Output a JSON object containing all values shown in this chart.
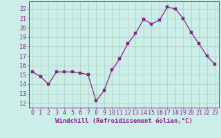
{
  "x": [
    0,
    1,
    2,
    3,
    4,
    5,
    6,
    7,
    8,
    9,
    10,
    11,
    12,
    13,
    14,
    15,
    16,
    17,
    18,
    19,
    20,
    21,
    22,
    23
  ],
  "y": [
    15.3,
    14.8,
    14.0,
    15.3,
    15.3,
    15.3,
    15.2,
    15.0,
    12.2,
    13.3,
    15.5,
    16.7,
    18.3,
    19.4,
    20.9,
    20.4,
    20.8,
    22.2,
    22.0,
    21.0,
    19.5,
    18.3,
    17.0,
    16.1
  ],
  "line_color": "#882288",
  "marker": "s",
  "markersize": 2.2,
  "linewidth": 0.9,
  "bg_color": "#cceee8",
  "grid_color": "#aaccbb",
  "xlabel": "Windchill (Refroidissement éolien,°C)",
  "ylabel_ticks": [
    12,
    13,
    14,
    15,
    16,
    17,
    18,
    19,
    20,
    21,
    22
  ],
  "ylim": [
    11.5,
    22.8
  ],
  "xlim": [
    -0.5,
    23.5
  ],
  "xlabel_fontsize": 6.5,
  "tick_fontsize": 6.0,
  "tick_color": "#882288",
  "axis_color": "#882288",
  "spine_color": "#882288"
}
